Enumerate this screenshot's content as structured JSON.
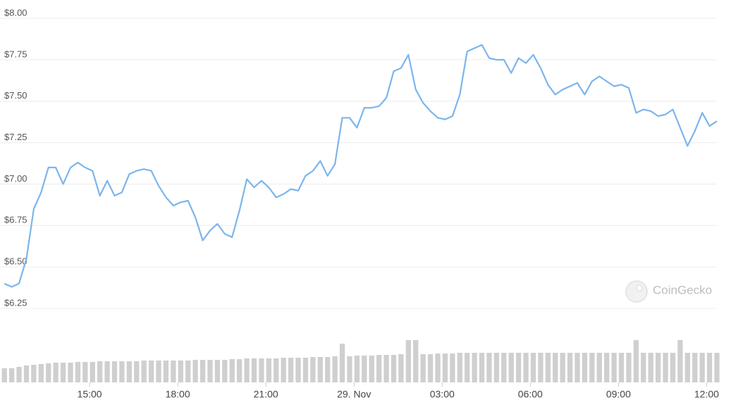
{
  "chart_data": {
    "type": "line",
    "color": "#7cb5ec",
    "volume_color": "#cfcfcf",
    "watermark": "CoinGecko",
    "xlim": [
      12.1,
      36.35
    ],
    "ylim": [
      6.25,
      8.0
    ],
    "volume_lim": [
      0,
      70
    ],
    "grid": true,
    "yticks": [
      {
        "value": 8.0,
        "label": "$8.00"
      },
      {
        "value": 7.75,
        "label": "$7.75"
      },
      {
        "value": 7.5,
        "label": "$7.50"
      },
      {
        "value": 7.25,
        "label": "$7.25"
      },
      {
        "value": 7.0,
        "label": "$7.00"
      },
      {
        "value": 6.75,
        "label": "$6.75"
      },
      {
        "value": 6.5,
        "label": "$6.50"
      },
      {
        "value": 6.25,
        "label": "$6.25"
      }
    ],
    "xticks": [
      {
        "value": 15,
        "label": "15:00"
      },
      {
        "value": 18,
        "label": "18:00"
      },
      {
        "value": 21,
        "label": "21:00"
      },
      {
        "value": 24,
        "label": "29. Nov"
      },
      {
        "value": 27,
        "label": "03:00"
      },
      {
        "value": 30,
        "label": "06:00"
      },
      {
        "value": 33,
        "label": "09:00"
      },
      {
        "value": 36,
        "label": "12:00"
      }
    ],
    "x": [
      12.1,
      12.35,
      12.6,
      12.85,
      13.1,
      13.35,
      13.6,
      13.85,
      14.1,
      14.35,
      14.6,
      14.85,
      15.1,
      15.35,
      15.6,
      15.85,
      16.1,
      16.35,
      16.6,
      16.85,
      17.1,
      17.35,
      17.6,
      17.85,
      18.1,
      18.35,
      18.6,
      18.85,
      19.1,
      19.35,
      19.6,
      19.85,
      20.1,
      20.35,
      20.6,
      20.85,
      21.1,
      21.35,
      21.6,
      21.85,
      22.1,
      22.35,
      22.6,
      22.85,
      23.1,
      23.35,
      23.6,
      23.85,
      24.1,
      24.35,
      24.6,
      24.85,
      25.1,
      25.35,
      25.6,
      25.85,
      26.1,
      26.35,
      26.6,
      26.85,
      27.1,
      27.35,
      27.6,
      27.85,
      28.1,
      28.35,
      28.6,
      28.85,
      29.1,
      29.35,
      29.6,
      29.85,
      30.1,
      30.35,
      30.6,
      30.85,
      31.1,
      31.35,
      31.6,
      31.85,
      32.1,
      32.35,
      32.6,
      32.85,
      33.1,
      33.35,
      33.6,
      33.85,
      34.1,
      34.35,
      34.6,
      34.85,
      35.1,
      35.35,
      35.6,
      35.85,
      36.1,
      36.35
    ],
    "values": [
      6.4,
      6.38,
      6.4,
      6.55,
      6.85,
      6.95,
      7.1,
      7.1,
      7.0,
      7.1,
      7.13,
      7.1,
      7.08,
      6.93,
      7.02,
      6.93,
      6.95,
      7.06,
      7.08,
      7.09,
      7.08,
      6.99,
      6.92,
      6.87,
      6.89,
      6.9,
      6.8,
      6.66,
      6.72,
      6.76,
      6.7,
      6.68,
      6.84,
      7.03,
      6.98,
      7.02,
      6.98,
      6.92,
      6.94,
      6.97,
      6.96,
      7.05,
      7.08,
      7.14,
      7.05,
      7.12,
      7.4,
      7.4,
      7.34,
      7.46,
      7.46,
      7.47,
      7.52,
      7.68,
      7.7,
      7.78,
      7.57,
      7.49,
      7.44,
      7.4,
      7.39,
      7.41,
      7.54,
      7.8,
      7.82,
      7.84,
      7.76,
      7.75,
      7.75,
      7.67,
      7.76,
      7.73,
      7.78,
      7.7,
      7.6,
      7.54,
      7.57,
      7.59,
      7.61,
      7.54,
      7.62,
      7.65,
      7.62,
      7.59,
      7.6,
      7.58,
      7.43,
      7.45,
      7.44,
      7.41,
      7.42,
      7.45,
      7.34,
      7.23,
      7.32,
      7.43,
      7.35,
      7.38
    ],
    "volume": [
      20,
      20,
      22,
      24,
      25,
      26,
      27,
      28,
      28,
      28,
      29,
      29,
      29,
      30,
      30,
      30,
      30,
      30,
      30,
      31,
      31,
      31,
      31,
      31,
      31,
      31,
      32,
      32,
      32,
      32,
      32,
      33,
      33,
      34,
      34,
      34,
      34,
      34,
      35,
      35,
      35,
      35,
      36,
      36,
      36,
      37,
      55,
      37,
      38,
      38,
      38,
      39,
      39,
      39,
      40,
      60,
      60,
      40,
      40,
      41,
      41,
      41,
      42,
      42,
      42,
      42,
      42,
      42,
      42,
      42,
      42,
      42,
      42,
      42,
      42,
      42,
      42,
      42,
      42,
      42,
      42,
      42,
      42,
      42,
      42,
      42,
      60,
      42,
      42,
      42,
      42,
      42,
      60,
      42,
      42,
      42,
      42,
      42
    ]
  }
}
